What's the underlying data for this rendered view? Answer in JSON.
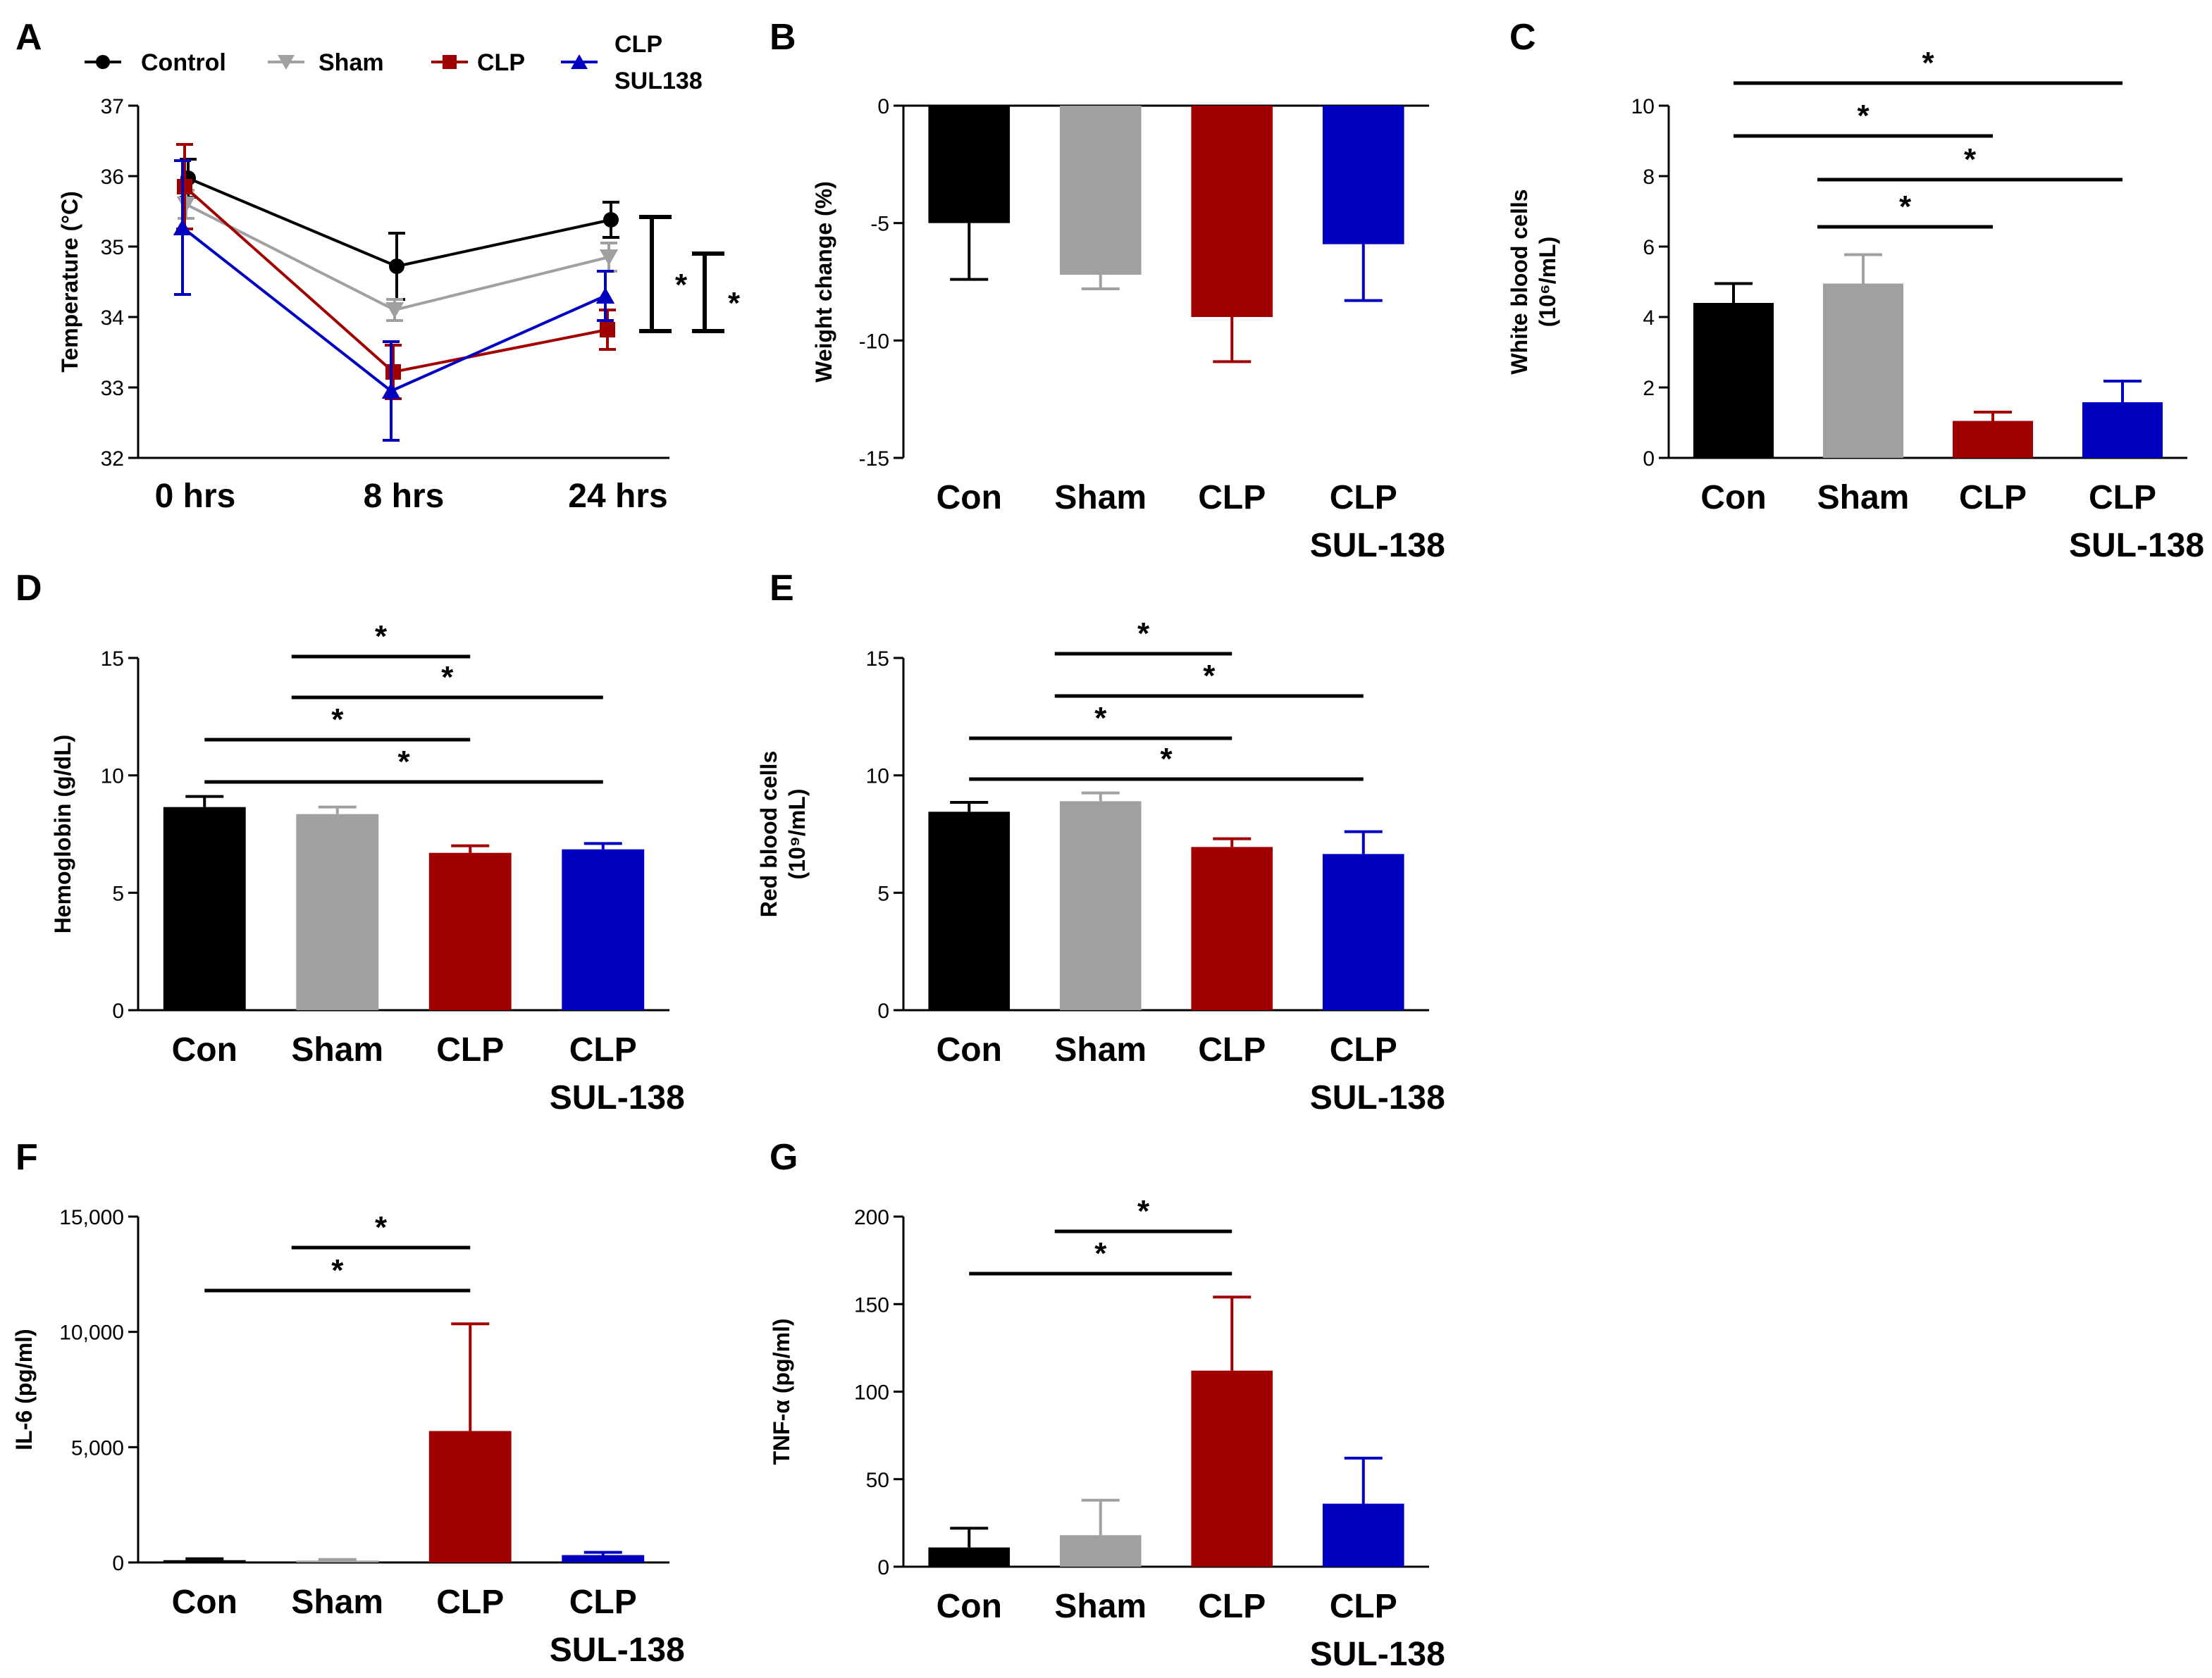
{
  "colors": {
    "control": "#000000",
    "sham": "#a0a0a3",
    "clp": "#a00000",
    "sul": "#0000c0"
  },
  "chart_data": [
    {
      "panel": "A",
      "type": "line",
      "ylabel": "Temperature (°C)",
      "ylim": [
        32,
        37
      ],
      "yticks": [
        "32",
        "33",
        "34",
        "35",
        "36",
        "37"
      ],
      "categories": [
        "0 hrs",
        "8 hrs",
        "24 hrs"
      ],
      "legend": [
        "Control",
        "Sham",
        "CLP",
        "CLP SUL138"
      ],
      "series": [
        {
          "name": "Control",
          "key": "control",
          "marker": "circle",
          "values": [
            35.97,
            34.72,
            35.38
          ],
          "err": [
            0.27,
            0.47,
            0.25
          ]
        },
        {
          "name": "Sham",
          "key": "sham",
          "marker": "triangle-down",
          "values": [
            35.6,
            34.1,
            34.85
          ],
          "err": [
            0.2,
            0.15,
            0.2
          ]
        },
        {
          "name": "CLP",
          "key": "clp",
          "marker": "square",
          "values": [
            35.85,
            33.22,
            33.82
          ],
          "err": [
            0.6,
            0.38,
            0.28
          ]
        },
        {
          "name": "CLP SUL138",
          "key": "sul",
          "marker": "triangle-up",
          "values": [
            35.27,
            32.95,
            34.3
          ],
          "err": [
            0.95,
            0.7,
            0.35
          ]
        }
      ],
      "significance": [
        "*",
        "*"
      ]
    },
    {
      "panel": "B",
      "type": "bar",
      "ylabel": "Weight change (%)",
      "ylim": [
        -15,
        0
      ],
      "yticks": [
        "0",
        "-5",
        "-10",
        "-15"
      ],
      "categories": [
        "Con",
        "Sham",
        "CLP",
        "CLP SUL-138"
      ],
      "values": [
        -5.0,
        -7.2,
        -9.0,
        -5.9
      ],
      "err": [
        2.4,
        0.6,
        1.9,
        2.4
      ],
      "significance": []
    },
    {
      "panel": "C",
      "type": "bar",
      "ylabel": "White blood cells (10⁶/mL)",
      "ylim": [
        0,
        10
      ],
      "yticks": [
        "0",
        "2",
        "4",
        "6",
        "8",
        "10"
      ],
      "categories": [
        "Con",
        "Sham",
        "CLP",
        "CLP SUL-138"
      ],
      "values": [
        4.4,
        4.95,
        1.05,
        1.58
      ],
      "err": [
        0.55,
        0.82,
        0.25,
        0.6
      ],
      "significance": [
        {
          "from": 0,
          "to": 3,
          "label": "*"
        },
        {
          "from": 0,
          "to": 2,
          "label": "*"
        },
        {
          "from": 1,
          "to": 3,
          "label": "*"
        },
        {
          "from": 1,
          "to": 2,
          "label": "*"
        }
      ]
    },
    {
      "panel": "D",
      "type": "bar",
      "ylabel": "Hemoglobin (g/dL)",
      "ylim": [
        0,
        15
      ],
      "yticks": [
        "0",
        "5",
        "10",
        "15"
      ],
      "categories": [
        "Con",
        "Sham",
        "CLP",
        "CLP SUL-138"
      ],
      "values": [
        8.65,
        8.35,
        6.7,
        6.85
      ],
      "err": [
        0.45,
        0.3,
        0.3,
        0.25
      ],
      "significance": [
        {
          "from": 1,
          "to": 2,
          "label": "*"
        },
        {
          "from": 1,
          "to": 3,
          "label": "*"
        },
        {
          "from": 0,
          "to": 2,
          "label": "*"
        },
        {
          "from": 0,
          "to": 3,
          "label": "*"
        }
      ]
    },
    {
      "panel": "E",
      "type": "bar",
      "ylabel": "Red blood cells (10⁹/mL)",
      "ylim": [
        0,
        15
      ],
      "yticks": [
        "0",
        "5",
        "10",
        "15"
      ],
      "categories": [
        "Con",
        "Sham",
        "CLP",
        "CLP SUL-138"
      ],
      "values": [
        8.45,
        8.9,
        6.95,
        6.65
      ],
      "err": [
        0.4,
        0.35,
        0.35,
        0.95
      ],
      "significance": [
        {
          "from": 1,
          "to": 2,
          "label": "*"
        },
        {
          "from": 1,
          "to": 3,
          "label": "*"
        },
        {
          "from": 0,
          "to": 2,
          "label": "*"
        },
        {
          "from": 0,
          "to": 3,
          "label": "*"
        }
      ]
    },
    {
      "panel": "F",
      "type": "bar",
      "ylabel": "IL-6 (pg/ml)",
      "ylim": [
        0,
        15000
      ],
      "yticks": [
        "0",
        "5,000",
        "10,000",
        "15,000"
      ],
      "categories": [
        "Con",
        "Sham",
        "CLP",
        "CLP SUL-138"
      ],
      "values": [
        100,
        80,
        5700,
        320
      ],
      "err": [
        60,
        50,
        4650,
        120
      ],
      "significance": [
        {
          "from": 1,
          "to": 2,
          "label": "*"
        },
        {
          "from": 0,
          "to": 2,
          "label": "*"
        }
      ]
    },
    {
      "panel": "G",
      "type": "bar",
      "ylabel": "TNF-α (pg/ml)",
      "ylim": [
        0,
        200
      ],
      "yticks": [
        "0",
        "50",
        "100",
        "150",
        "200"
      ],
      "categories": [
        "Con",
        "Sham",
        "CLP",
        "CLP SUL-138"
      ],
      "values": [
        11,
        18,
        112,
        36
      ],
      "err": [
        11,
        20,
        42,
        26
      ],
      "significance": [
        {
          "from": 1,
          "to": 2,
          "label": "*"
        },
        {
          "from": 0,
          "to": 2,
          "label": "*"
        }
      ]
    }
  ]
}
